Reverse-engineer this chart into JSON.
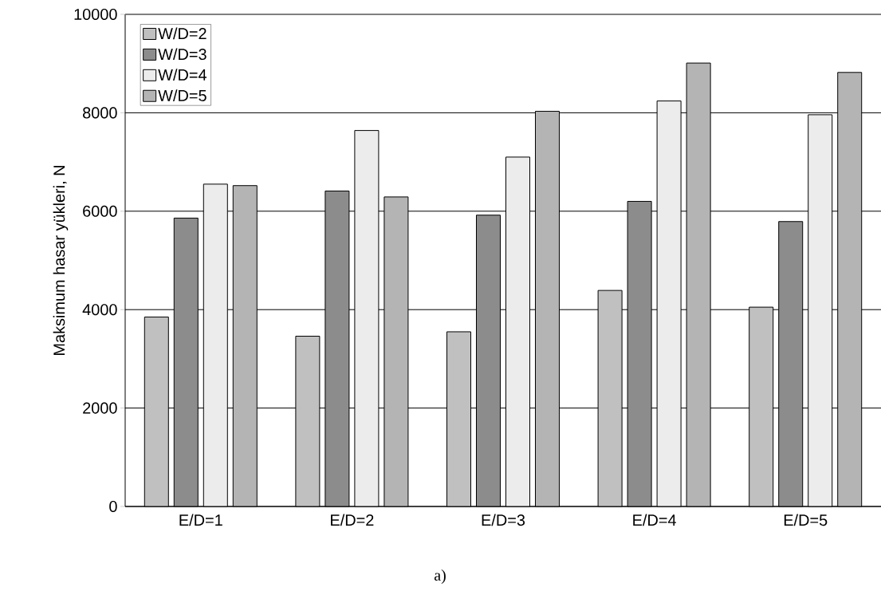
{
  "chart_data": {
    "type": "bar",
    "ylabel": "Maksimum hasar yükleri, N",
    "categories": [
      "E/D=1",
      "E/D=2",
      "E/D=3",
      "E/D=4",
      "E/D=5"
    ],
    "series": [
      {
        "name": "W/D=2",
        "color": "#c0c0c0",
        "values": [
          3850,
          3460,
          3550,
          4390,
          4050
        ]
      },
      {
        "name": "W/D=3",
        "color": "#8c8c8c",
        "values": [
          5860,
          6410,
          5920,
          6200,
          5790
        ]
      },
      {
        "name": "W/D=4",
        "color": "#ececec",
        "values": [
          6550,
          7640,
          7100,
          8240,
          7960
        ]
      },
      {
        "name": "W/D=5",
        "color": "#b4b4b4",
        "values": [
          6520,
          6290,
          8030,
          9010,
          8820
        ]
      }
    ],
    "ylim": [
      0,
      10000
    ],
    "yticks": [
      0,
      2000,
      4000,
      6000,
      8000,
      10000
    ],
    "grid": "y",
    "legend": "top left",
    "annotations": [
      "a)"
    ]
  }
}
